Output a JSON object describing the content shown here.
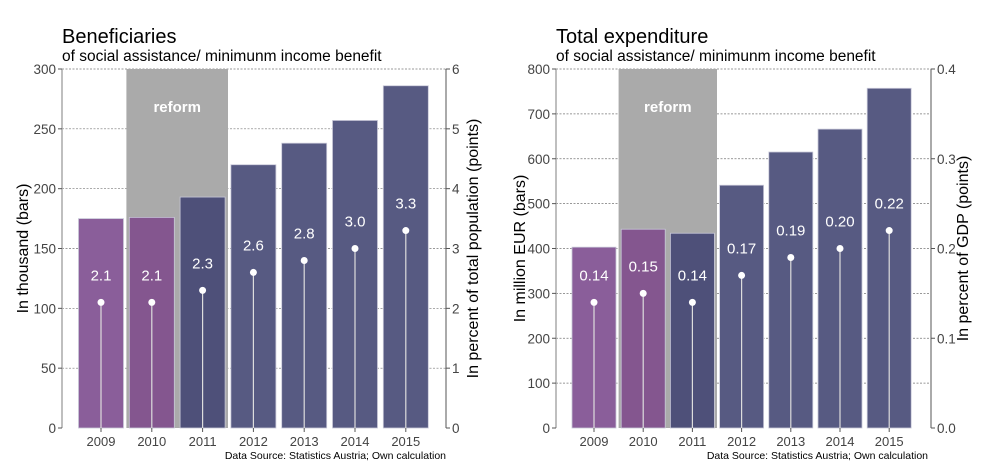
{
  "chart_data": [
    {
      "type": "bar",
      "title": "Beneficiaries",
      "subtitle": "of social assistance/ minimunm income benefit",
      "ylabel": "In thousand (bars)",
      "y2label": "In percent of total population (points)",
      "categories": [
        "2009",
        "2010",
        "2011",
        "2012",
        "2013",
        "2014",
        "2015"
      ],
      "ylim": [
        0,
        300
      ],
      "yticks": [
        0,
        50,
        100,
        150,
        200,
        250,
        300
      ],
      "y2lim": [
        0,
        6
      ],
      "y2ticks": [
        "0",
        "1",
        "2",
        "3",
        "4",
        "5",
        "6"
      ],
      "series": [
        {
          "type": "bar",
          "values": [
            175,
            176,
            193,
            220,
            238,
            257,
            286
          ]
        },
        {
          "type": "lollipop",
          "values": [
            2.1,
            2.1,
            2.3,
            2.6,
            2.8,
            3.0,
            3.3
          ],
          "labels": [
            "2.1",
            "2.1",
            "2.3",
            "2.6",
            "2.8",
            "3.0",
            "3.3"
          ]
        }
      ],
      "bar_colors": [
        "#8a5e9a",
        "#84568f",
        "#4e5079",
        "#575a82",
        "#575a82",
        "#575a82",
        "#575a82"
      ],
      "annotation": {
        "text": "reform",
        "from": "2010",
        "to": "2011",
        "color": "#aaaaaa"
      },
      "grid": true,
      "source": "Data Source: Statistics Austria; Own calculation"
    },
    {
      "type": "bar",
      "title": "Total expenditure",
      "subtitle": "of social assistance/ minimunm income benefit",
      "ylabel": "In million EUR (bars)",
      "y2label": "In percent of GDP (points)",
      "categories": [
        "2009",
        "2010",
        "2011",
        "2012",
        "2013",
        "2014",
        "2015"
      ],
      "ylim": [
        0,
        800
      ],
      "yticks": [
        0,
        100,
        200,
        300,
        400,
        500,
        600,
        700,
        800
      ],
      "y2lim": [
        0,
        0.4
      ],
      "y2ticks": [
        "0.0",
        "0.1",
        "0.2",
        "0.3",
        "0.4"
      ],
      "series": [
        {
          "type": "bar",
          "values": [
            403,
            443,
            434,
            541,
            615,
            666,
            757
          ]
        },
        {
          "type": "lollipop",
          "values": [
            0.14,
            0.15,
            0.14,
            0.17,
            0.19,
            0.2,
            0.22
          ],
          "labels": [
            "0.14",
            "0.15",
            "0.14",
            "0.17",
            "0.19",
            "0.20",
            "0.22"
          ]
        }
      ],
      "bar_colors": [
        "#8a5e9a",
        "#84568f",
        "#4e5079",
        "#575a82",
        "#575a82",
        "#575a82",
        "#575a82"
      ],
      "annotation": {
        "text": "reform",
        "from": "2010",
        "to": "2011",
        "color": "#aaaaaa"
      },
      "grid": true,
      "source": "Data Source: Statistics Austria; Own calculation"
    }
  ]
}
